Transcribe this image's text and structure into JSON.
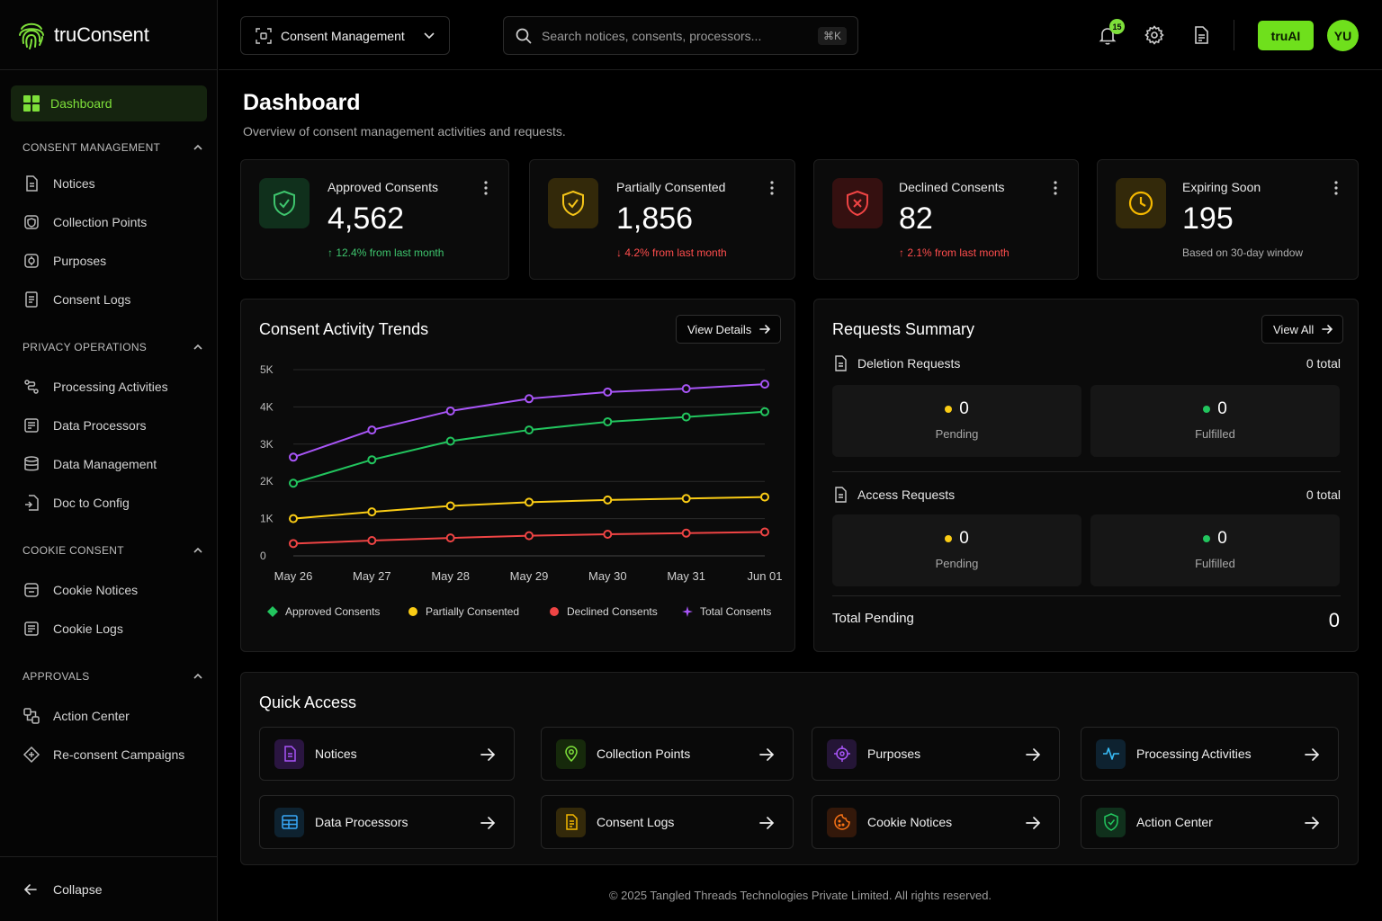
{
  "brand": {
    "name": "truConsent"
  },
  "sidebar": {
    "dashboard": "Dashboard",
    "sections": [
      {
        "title": "CONSENT MANAGEMENT",
        "items": [
          "Notices",
          "Collection Points",
          "Purposes",
          "Consent Logs"
        ]
      },
      {
        "title": "PRIVACY OPERATIONS",
        "items": [
          "Processing Activities",
          "Data Processors",
          "Data Management",
          "Doc to Config"
        ]
      },
      {
        "title": "COOKIE CONSENT",
        "items": [
          "Cookie Notices",
          "Cookie Logs"
        ]
      },
      {
        "title": "APPROVALS",
        "items": [
          "Action Center",
          "Re-consent Campaigns"
        ]
      }
    ],
    "collapse": "Collapse"
  },
  "topbar": {
    "module": "Consent Management",
    "search_placeholder": "Search notices, consents, processors...",
    "search_shortcut": "⌘K",
    "notification_count": "15",
    "ai_label": "truAI",
    "avatar_initials": "YU"
  },
  "page": {
    "title": "Dashboard",
    "subtitle": "Overview of consent management activities and requests."
  },
  "stats": [
    {
      "label": "Approved Consents",
      "value": "4,562",
      "trend": "↑ 12.4% from last month",
      "trend_color": "#3ec46d",
      "accent": "#3ec46d",
      "icon": "shield-check-icon"
    },
    {
      "label": "Partially Consented",
      "value": "1,856",
      "trend": "↓ 4.2% from last month",
      "trend_color": "#ff4d4d",
      "accent": "#f5c518",
      "icon": "shield-check-icon"
    },
    {
      "label": "Declined Consents",
      "value": "82",
      "trend": "↑ 2.1% from last month",
      "trend_color": "#ff4d4d",
      "accent": "#ef4444",
      "icon": "shield-x-icon"
    },
    {
      "label": "Expiring Soon",
      "value": "195",
      "trend": "Based on 30-day window",
      "trend_color": "#b0b0b0",
      "accent": "#f5b800",
      "icon": "clock-icon"
    }
  ],
  "trends": {
    "title": "Consent Activity Trends",
    "button": "View Details"
  },
  "chart_data": {
    "type": "line",
    "x": [
      "May 26",
      "May 27",
      "May 28",
      "May 29",
      "May 30",
      "May 31",
      "Jun 01"
    ],
    "yticks": [
      "0",
      "1K",
      "2K",
      "3K",
      "4K",
      "5K"
    ],
    "ylim": [
      0,
      5000
    ],
    "grid": true,
    "legend_placement": "bottom",
    "series": [
      {
        "name": "Approved Consents",
        "color": "#22c55e",
        "values": [
          1950,
          2580,
          3080,
          3380,
          3600,
          3730,
          3870
        ]
      },
      {
        "name": "Partially Consented",
        "color": "#facc15",
        "values": [
          1000,
          1180,
          1340,
          1440,
          1500,
          1540,
          1580
        ]
      },
      {
        "name": "Declined Consents",
        "color": "#ef4444",
        "values": [
          330,
          410,
          480,
          540,
          580,
          610,
          640
        ]
      },
      {
        "name": "Total Consents",
        "color": "#a855f7",
        "values": [
          2650,
          3380,
          3890,
          4220,
          4400,
          4490,
          4610
        ]
      }
    ]
  },
  "requests": {
    "title": "Requests Summary",
    "button": "View All",
    "deletion": {
      "label": "Deletion Requests",
      "total": "0 total",
      "pending": "0",
      "pending_label": "Pending",
      "fulfilled": "0",
      "fulfilled_label": "Fulfilled"
    },
    "access": {
      "label": "Access Requests",
      "total": "0 total",
      "pending": "0",
      "pending_label": "Pending",
      "fulfilled": "0",
      "fulfilled_label": "Fulfilled"
    },
    "total_pending_label": "Total Pending",
    "total_pending": "0"
  },
  "quick_access": {
    "title": "Quick Access",
    "items": [
      {
        "label": "Notices",
        "icon": "document-icon",
        "color": "#a855f7"
      },
      {
        "label": "Collection Points",
        "icon": "map-pin-icon",
        "color": "#7ee03a"
      },
      {
        "label": "Purposes",
        "icon": "target-icon",
        "color": "#a855f7"
      },
      {
        "label": "Processing Activities",
        "icon": "activity-icon",
        "color": "#38bdf8"
      },
      {
        "label": "Data Processors",
        "icon": "table-icon",
        "color": "#38a8f8"
      },
      {
        "label": "Consent Logs",
        "icon": "log-icon",
        "color": "#f5b800"
      },
      {
        "label": "Cookie Notices",
        "icon": "cookie-icon",
        "color": "#f97316"
      },
      {
        "label": "Action Center",
        "icon": "shield-check-icon",
        "color": "#22c55e"
      }
    ]
  },
  "footer": "© 2025 Tangled Threads Technologies Private Limited. All rights reserved."
}
